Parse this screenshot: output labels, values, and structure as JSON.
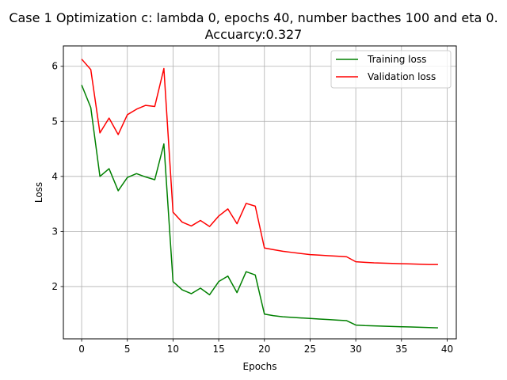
{
  "chart_data": {
    "type": "line",
    "title": "Case 1 Optimization c: lambda 0, epochs 40, number bacthes 100 and eta 0.",
    "subtitle": "Accuarcy:0.327",
    "xlabel": "Epochs",
    "ylabel": "Loss",
    "xlim": [
      -2,
      41
    ],
    "ylim": [
      1.05,
      6.37
    ],
    "xticks": [
      0,
      5,
      10,
      15,
      20,
      25,
      30,
      35,
      40
    ],
    "yticks": [
      2,
      3,
      4,
      5,
      6
    ],
    "grid": true,
    "legend_position": "top-right",
    "x": [
      0,
      1,
      2,
      3,
      4,
      5,
      6,
      7,
      8,
      9,
      10,
      11,
      12,
      13,
      14,
      15,
      16,
      17,
      18,
      19,
      20,
      21,
      22,
      23,
      24,
      25,
      26,
      27,
      28,
      29,
      30,
      31,
      32,
      33,
      34,
      35,
      36,
      37,
      38,
      39
    ],
    "series": [
      {
        "name": "Training loss",
        "color": "#008000",
        "values": [
          5.66,
          5.25,
          4.0,
          4.14,
          3.74,
          3.98,
          4.05,
          3.99,
          3.94,
          4.59,
          2.09,
          1.94,
          1.87,
          1.97,
          1.85,
          2.09,
          2.19,
          1.89,
          2.27,
          2.21,
          1.5,
          1.47,
          1.45,
          1.44,
          1.43,
          1.42,
          1.41,
          1.4,
          1.39,
          1.38,
          1.3,
          1.29,
          1.285,
          1.28,
          1.275,
          1.27,
          1.265,
          1.26,
          1.255,
          1.25
        ]
      },
      {
        "name": "Validation loss",
        "color": "#ff0000",
        "values": [
          6.13,
          5.94,
          4.79,
          5.06,
          4.76,
          5.12,
          5.22,
          5.29,
          5.27,
          5.96,
          3.35,
          3.17,
          3.1,
          3.2,
          3.09,
          3.28,
          3.41,
          3.14,
          3.51,
          3.46,
          2.7,
          2.67,
          2.64,
          2.62,
          2.6,
          2.58,
          2.57,
          2.56,
          2.55,
          2.54,
          2.45,
          2.44,
          2.43,
          2.425,
          2.42,
          2.415,
          2.41,
          2.405,
          2.4,
          2.4
        ]
      }
    ]
  }
}
